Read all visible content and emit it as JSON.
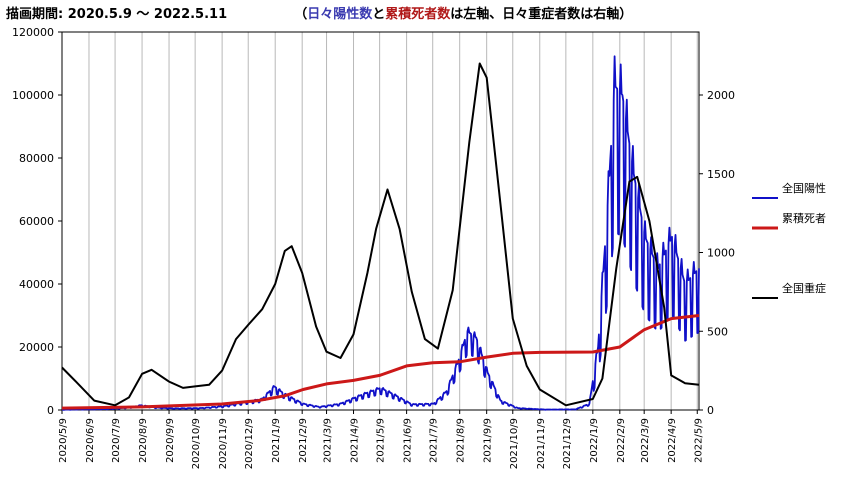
{
  "header": {
    "period_label": "描画期間:",
    "period_value": "2020.5.9 〜 2022.5.11",
    "note_open": "（",
    "note_cases": "日々陽性数",
    "note_and": "と",
    "note_deaths": "累積死者数",
    "note_rest": "は左軸、日々重症者数は右軸）"
  },
  "colors": {
    "cases": "#1010c8",
    "deaths": "#cc1818",
    "severe": "#000000",
    "note_cases": "#3a3ab0",
    "note_deaths": "#b01818",
    "grid": "#b8b8b8"
  },
  "chart_data": {
    "type": "line",
    "x_type": "date",
    "x_range": [
      "2020-05-09",
      "2022-05-11"
    ],
    "y_left": {
      "min": 0,
      "max": 120000,
      "ticks": [
        0,
        20000,
        40000,
        60000,
        80000,
        100000,
        120000
      ]
    },
    "y_right": {
      "min": 0,
      "max": 2400,
      "ticks": [
        0,
        500,
        1000,
        1500,
        2000
      ]
    },
    "x_ticks": [
      "2020/5/9",
      "2020/6/9",
      "2020/7/9",
      "2020/8/9",
      "2020/9/9",
      "2020/10/9",
      "2020/11/9",
      "2020/12/9",
      "2021/1/9",
      "2021/2/9",
      "2021/3/9",
      "2021/4/9",
      "2021/5/9",
      "2021/6/9",
      "2021/7/9",
      "2021/8/9",
      "2021/9/9",
      "2021/10/9",
      "2021/11/9",
      "2021/12/9",
      "2022/1/9",
      "2022/2/9",
      "2022/3/9",
      "2022/4/9",
      "2022/5/9"
    ],
    "grid": "vertical",
    "legend_position": "right",
    "series": [
      {
        "name": "全国陽性",
        "axis": "left",
        "points": [
          [
            "2020-05-09",
            100
          ],
          [
            "2020-07-01",
            300
          ],
          [
            "2020-07-25",
            800
          ],
          [
            "2020-08-08",
            1500
          ],
          [
            "2020-08-25",
            800
          ],
          [
            "2020-09-15",
            500
          ],
          [
            "2020-10-15",
            600
          ],
          [
            "2020-11-10",
            1200
          ],
          [
            "2020-12-05",
            2500
          ],
          [
            "2020-12-25",
            3500
          ],
          [
            "2021-01-08",
            7500
          ],
          [
            "2021-01-20",
            5000
          ],
          [
            "2021-02-10",
            2000
          ],
          [
            "2021-03-01",
            1000
          ],
          [
            "2021-03-25",
            2000
          ],
          [
            "2021-04-20",
            5000
          ],
          [
            "2021-05-10",
            7000
          ],
          [
            "2021-05-25",
            5000
          ],
          [
            "2021-06-15",
            1800
          ],
          [
            "2021-07-10",
            2000
          ],
          [
            "2021-07-25",
            6000
          ],
          [
            "2021-08-08",
            16000
          ],
          [
            "2021-08-18",
            25000
          ],
          [
            "2021-08-28",
            23000
          ],
          [
            "2021-09-10",
            12000
          ],
          [
            "2021-09-25",
            3000
          ],
          [
            "2021-10-15",
            600
          ],
          [
            "2021-11-15",
            150
          ],
          [
            "2021-12-20",
            200
          ],
          [
            "2022-01-05",
            2000
          ],
          [
            "2022-01-15",
            20000
          ],
          [
            "2022-01-25",
            60000
          ],
          [
            "2022-02-03",
            103000
          ],
          [
            "2022-02-12",
            100000
          ],
          [
            "2022-02-25",
            75000
          ],
          [
            "2022-03-10",
            55000
          ],
          [
            "2022-03-25",
            45000
          ],
          [
            "2022-04-10",
            55000
          ],
          [
            "2022-04-25",
            40000
          ],
          [
            "2022-05-11",
            45000
          ]
        ]
      },
      {
        "name": "累積死者",
        "axis": "left",
        "points": [
          [
            "2020-05-09",
            600
          ],
          [
            "2020-08-09",
            1000
          ],
          [
            "2020-11-09",
            1900
          ],
          [
            "2020-12-20",
            3000
          ],
          [
            "2021-01-20",
            4500
          ],
          [
            "2021-02-10",
            6500
          ],
          [
            "2021-03-09",
            8300
          ],
          [
            "2021-04-09",
            9400
          ],
          [
            "2021-05-09",
            11000
          ],
          [
            "2021-06-09",
            14000
          ],
          [
            "2021-07-09",
            15000
          ],
          [
            "2021-08-09",
            15300
          ],
          [
            "2021-09-09",
            16800
          ],
          [
            "2021-10-09",
            18000
          ],
          [
            "2021-11-09",
            18300
          ],
          [
            "2022-01-09",
            18400
          ],
          [
            "2022-02-09",
            20000
          ],
          [
            "2022-03-09",
            25500
          ],
          [
            "2022-04-09",
            29000
          ],
          [
            "2022-05-11",
            30000
          ]
        ]
      },
      {
        "name": "全国重症",
        "axis": "right",
        "points": [
          [
            "2020-05-09",
            270
          ],
          [
            "2020-05-25",
            180
          ],
          [
            "2020-06-15",
            60
          ],
          [
            "2020-07-09",
            30
          ],
          [
            "2020-07-25",
            80
          ],
          [
            "2020-08-09",
            230
          ],
          [
            "2020-08-20",
            255
          ],
          [
            "2020-09-09",
            180
          ],
          [
            "2020-09-25",
            140
          ],
          [
            "2020-10-09",
            150
          ],
          [
            "2020-10-25",
            160
          ],
          [
            "2020-11-09",
            250
          ],
          [
            "2020-11-25",
            450
          ],
          [
            "2020-12-09",
            540
          ],
          [
            "2020-12-25",
            640
          ],
          [
            "2021-01-09",
            800
          ],
          [
            "2021-01-20",
            1010
          ],
          [
            "2021-01-28",
            1040
          ],
          [
            "2021-02-09",
            870
          ],
          [
            "2021-02-25",
            530
          ],
          [
            "2021-03-09",
            370
          ],
          [
            "2021-03-25",
            330
          ],
          [
            "2021-04-09",
            480
          ],
          [
            "2021-04-25",
            870
          ],
          [
            "2021-05-05",
            1150
          ],
          [
            "2021-05-18",
            1400
          ],
          [
            "2021-06-01",
            1150
          ],
          [
            "2021-06-15",
            750
          ],
          [
            "2021-06-30",
            450
          ],
          [
            "2021-07-15",
            390
          ],
          [
            "2021-08-01",
            760
          ],
          [
            "2021-08-20",
            1700
          ],
          [
            "2021-09-01",
            2200
          ],
          [
            "2021-09-09",
            2110
          ],
          [
            "2021-09-25",
            1300
          ],
          [
            "2021-10-09",
            580
          ],
          [
            "2021-10-25",
            280
          ],
          [
            "2021-11-09",
            130
          ],
          [
            "2021-12-09",
            30
          ],
          [
            "2022-01-09",
            70
          ],
          [
            "2022-01-20",
            200
          ],
          [
            "2022-02-05",
            900
          ],
          [
            "2022-02-20",
            1450
          ],
          [
            "2022-03-01",
            1480
          ],
          [
            "2022-03-15",
            1200
          ],
          [
            "2022-04-01",
            650
          ],
          [
            "2022-04-09",
            220
          ],
          [
            "2022-04-25",
            170
          ],
          [
            "2022-05-11",
            160
          ]
        ]
      }
    ]
  }
}
